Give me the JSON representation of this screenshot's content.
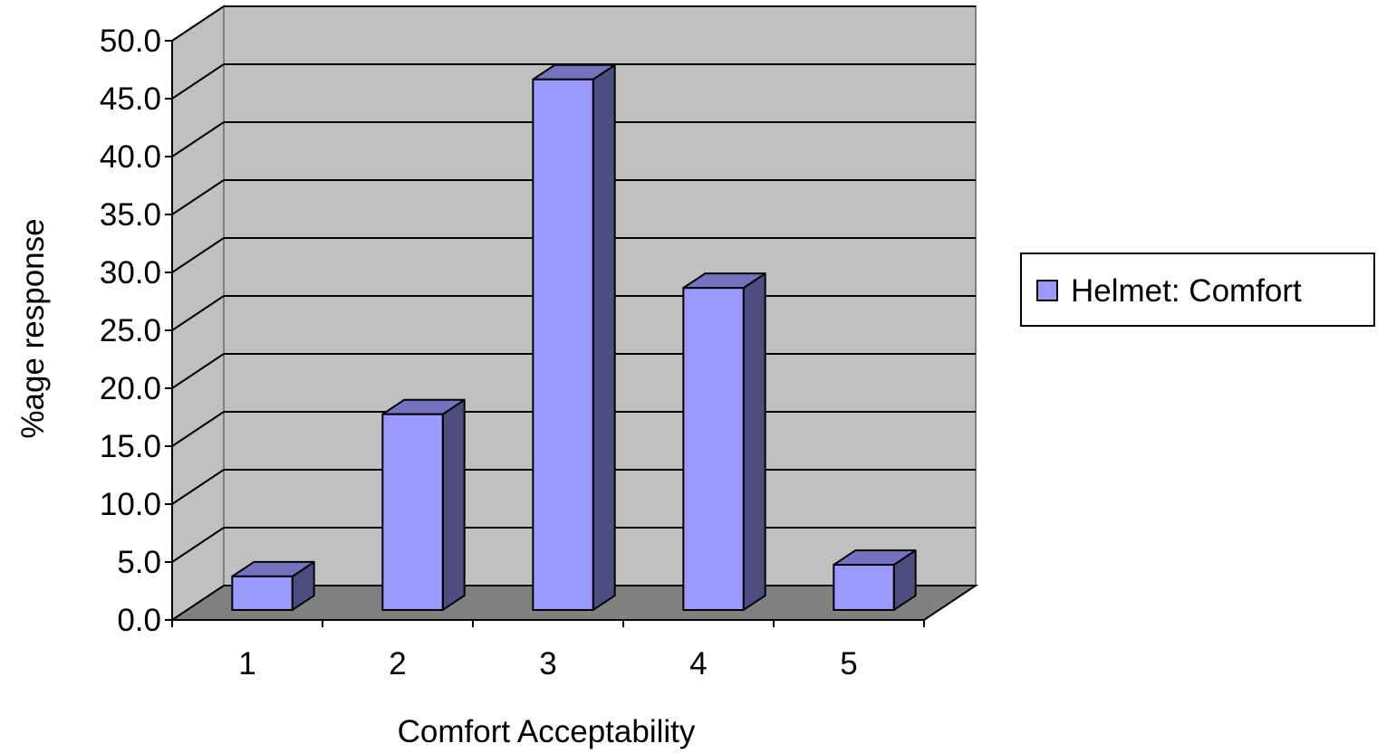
{
  "chart_data": {
    "type": "bar",
    "categories": [
      "1",
      "2",
      "3",
      "4",
      "5"
    ],
    "series": [
      {
        "name": "Helmet: Comfort",
        "values": [
          2.9,
          16.9,
          45.8,
          27.8,
          3.9
        ]
      }
    ],
    "xlabel": "Comfort Acceptability",
    "ylabel": "%age response",
    "ylim": [
      0,
      50
    ],
    "yticks": [
      "0.0",
      "5.0",
      "10.0",
      "15.0",
      "20.0",
      "25.0",
      "30.0",
      "35.0",
      "40.0",
      "45.0",
      "50.0"
    ],
    "grid": true,
    "legend_position": "right",
    "colors": {
      "bar_front": "#9999ff",
      "bar_side": "#4d4d80",
      "bar_top": "#7373bf",
      "wall": "#c0c0c0",
      "floor": "#808080"
    }
  }
}
